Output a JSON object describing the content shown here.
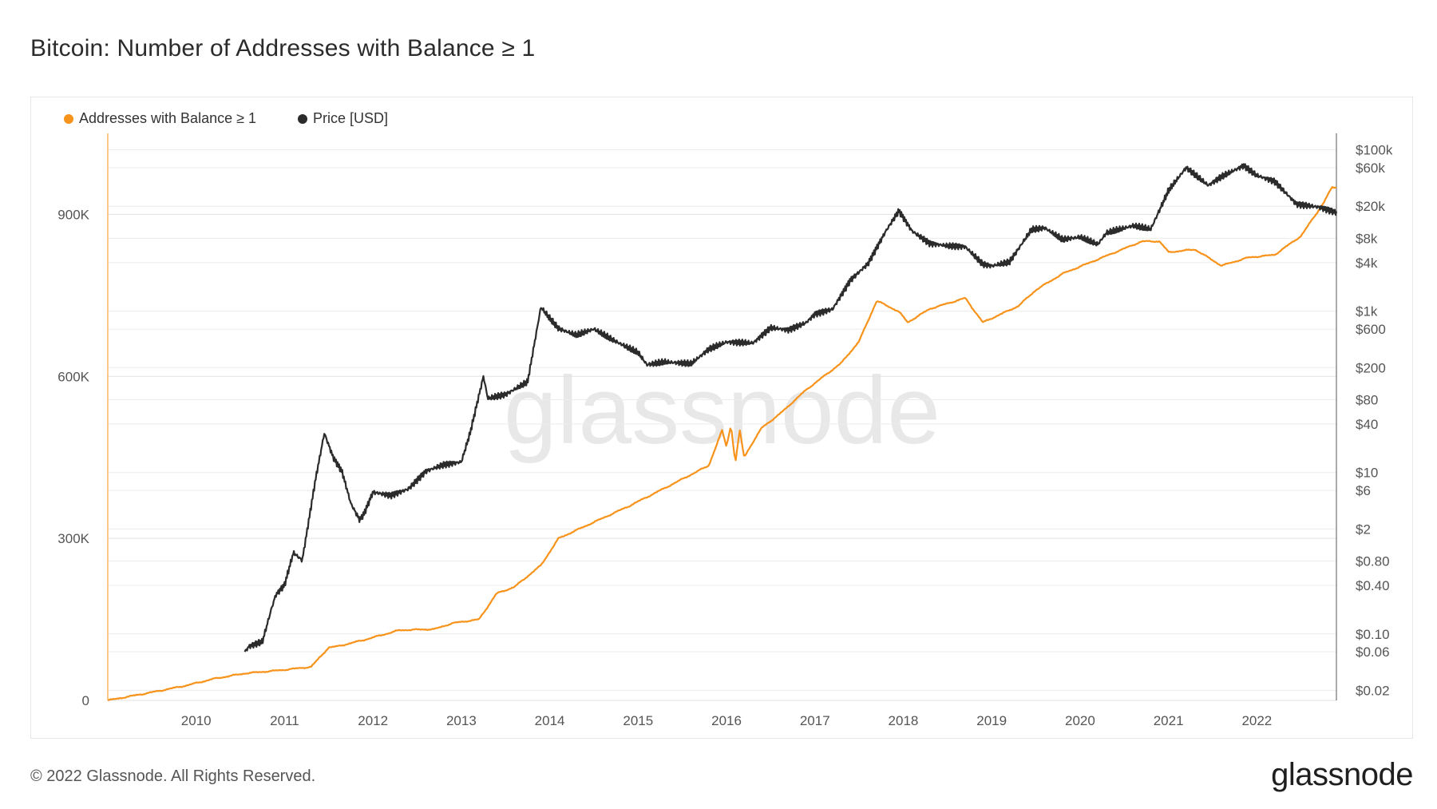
{
  "title": "Bitcoin: Number of Addresses with Balance ≥ 1",
  "footer": {
    "copyright": "© 2022 Glassnode. All Rights Reserved.",
    "logo": "glassnode"
  },
  "watermark": "glassnode",
  "colors": {
    "addresses": "#f7931a",
    "price": "#2b2b2b",
    "grid": "#ececec",
    "axis_text": "#555555"
  },
  "chart_data": {
    "type": "line",
    "title": "Bitcoin: Number of Addresses with Balance ≥ 1",
    "legend_position": "top-left",
    "grid": true,
    "x_ticks": [
      "2010",
      "2011",
      "2012",
      "2013",
      "2014",
      "2015",
      "2016",
      "2017",
      "2018",
      "2019",
      "2020",
      "2021",
      "2022"
    ],
    "xlim": [
      2009.0,
      2022.9
    ],
    "y_left": {
      "ticks": [
        "0",
        "300K",
        "600K",
        "900K"
      ],
      "tick_values": [
        0,
        300000,
        600000,
        900000
      ],
      "ylim": [
        0,
        1050000
      ]
    },
    "y_right": {
      "scale": "log",
      "ticks": [
        "$100k",
        "$60k",
        "$20k",
        "$8k",
        "$4k",
        "$1k",
        "$600",
        "$200",
        "$80",
        "$40",
        "$10",
        "$6",
        "$2",
        "$0.80",
        "$0.40",
        "$0.10",
        "$0.06",
        "$0.02"
      ],
      "tick_values": [
        100000,
        60000,
        20000,
        8000,
        4000,
        1000,
        600,
        200,
        80,
        40,
        10,
        6,
        2,
        0.8,
        0.4,
        0.1,
        0.06,
        0.02
      ],
      "ylim": [
        0.015,
        160000
      ]
    },
    "series": [
      {
        "name": "Addresses with Balance ≥ 1",
        "axis": "left",
        "x": [
          2009.0,
          2009.5,
          2009.9,
          2010.2,
          2010.55,
          2010.9,
          2011.3,
          2011.5,
          2011.6,
          2011.9,
          2012.3,
          2012.7,
          2012.9,
          2013.2,
          2013.4,
          2013.6,
          2013.9,
          2014.1,
          2014.5,
          2014.9,
          2015.3,
          2015.8,
          2015.95,
          2016.0,
          2016.05,
          2016.1,
          2016.15,
          2016.2,
          2016.25,
          2016.4,
          2016.6,
          2016.9,
          2017.3,
          2017.5,
          2017.7,
          2017.95,
          2018.05,
          2018.3,
          2018.7,
          2018.9,
          2019.3,
          2019.5,
          2019.8,
          2020.1,
          2020.4,
          2020.7,
          2020.9,
          2021.0,
          2021.3,
          2021.6,
          2021.9,
          2022.2,
          2022.5,
          2022.75,
          2022.85,
          2022.9
        ],
        "values": [
          0,
          15000,
          28000,
          40000,
          50000,
          55000,
          62000,
          98000,
          100000,
          112000,
          130000,
          132000,
          143000,
          150000,
          198000,
          210000,
          250000,
          300000,
          330000,
          360000,
          393000,
          435000,
          500000,
          470000,
          510000,
          440000,
          500000,
          450000,
          465000,
          505000,
          530000,
          575000,
          625000,
          665000,
          740000,
          720000,
          700000,
          725000,
          745000,
          700000,
          730000,
          760000,
          790000,
          810000,
          830000,
          850000,
          850000,
          830000,
          835000,
          805000,
          820000,
          825000,
          860000,
          920000,
          950000,
          950000
        ]
      },
      {
        "name": "Price [USD]",
        "axis": "right",
        "x": [
          2010.55,
          2010.6,
          2010.75,
          2010.85,
          2010.9,
          2011.0,
          2011.1,
          2011.2,
          2011.35,
          2011.45,
          2011.55,
          2011.65,
          2011.75,
          2011.85,
          2011.9,
          2012.0,
          2012.2,
          2012.4,
          2012.6,
          2012.8,
          2013.0,
          2013.1,
          2013.25,
          2013.3,
          2013.5,
          2013.75,
          2013.9,
          2014.0,
          2014.1,
          2014.3,
          2014.5,
          2014.7,
          2014.9,
          2015.0,
          2015.1,
          2015.3,
          2015.6,
          2015.8,
          2016.0,
          2016.3,
          2016.5,
          2016.7,
          2016.9,
          2017.0,
          2017.2,
          2017.4,
          2017.6,
          2017.8,
          2017.95,
          2018.1,
          2018.3,
          2018.5,
          2018.7,
          2018.9,
          2019.0,
          2019.2,
          2019.45,
          2019.6,
          2019.8,
          2020.0,
          2020.2,
          2020.3,
          2020.6,
          2020.8,
          2021.0,
          2021.2,
          2021.45,
          2021.6,
          2021.85,
          2022.0,
          2022.2,
          2022.45,
          2022.7,
          2022.9
        ],
        "values": [
          0.06,
          0.07,
          0.08,
          0.2,
          0.3,
          0.4,
          1.0,
          0.8,
          8.0,
          30,
          15,
          10,
          4,
          2.5,
          3,
          5.5,
          5,
          6,
          10,
          12,
          13,
          30,
          150,
          80,
          90,
          130,
          1100,
          800,
          600,
          500,
          600,
          450,
          350,
          310,
          220,
          240,
          230,
          350,
          430,
          420,
          650,
          610,
          750,
          960,
          1100,
          2500,
          4000,
          10000,
          18000,
          10000,
          7000,
          6500,
          6300,
          3800,
          3600,
          4000,
          10000,
          10500,
          7500,
          8000,
          6500,
          9000,
          11000,
          10000,
          30000,
          58000,
          35000,
          45000,
          62000,
          47000,
          40000,
          21000,
          19500,
          16800
        ]
      }
    ]
  }
}
